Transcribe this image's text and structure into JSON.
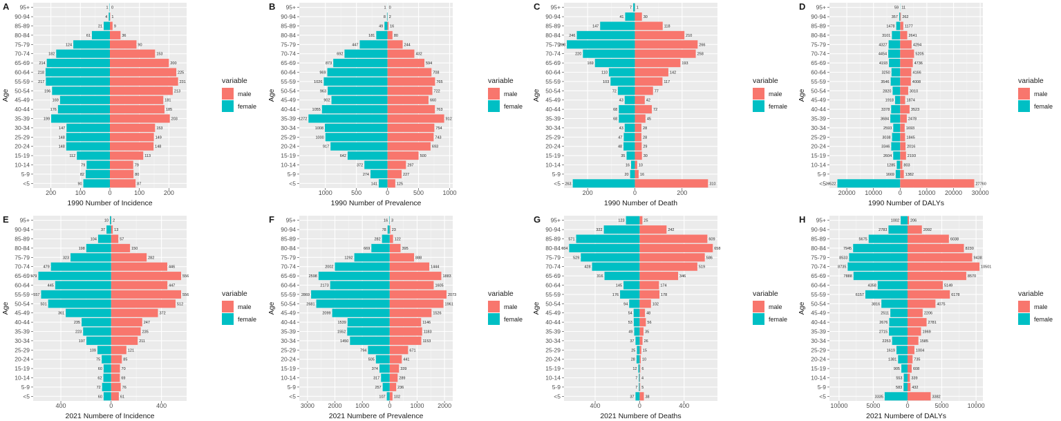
{
  "colors": {
    "male": "#F8766D",
    "female": "#00BFC4",
    "panel": "#EBEBEB",
    "grid": "#FFFFFF",
    "text": "#1A1A1A",
    "axisText": "#4D4D4D"
  },
  "age_groups": [
    "95+",
    "90-94",
    "85-89",
    "80-84",
    "75-79",
    "70-74",
    "65-69",
    "60-64",
    "55-59",
    "50-54",
    "45-49",
    "40-44",
    "35-39",
    "30-34",
    "25-29",
    "20-24",
    "15-19",
    "10-14",
    "5-9",
    "<5"
  ],
  "chart_data": [
    {
      "type": "bar",
      "orientation": "horizontal",
      "panel_label": "A",
      "xlabel": "1990 Number of Incidence",
      "ylabel": "Age",
      "legend_title": "variable",
      "legend_labels": [
        "male",
        "female"
      ],
      "xlim": [
        -260,
        260
      ],
      "ticks": [
        -200,
        -100,
        0,
        100,
        200
      ],
      "tick_labels": [
        "200",
        "100",
        "0",
        "100",
        "200"
      ],
      "male": [
        0,
        1,
        9,
        36,
        90,
        153,
        200,
        225,
        231,
        213,
        181,
        185,
        203,
        153,
        149,
        148,
        113,
        79,
        80,
        87
      ],
      "female": [
        1,
        4,
        21,
        61,
        124,
        182,
        214,
        218,
        217,
        196,
        169,
        176,
        199,
        147,
        148,
        148,
        112,
        79,
        82,
        90
      ]
    },
    {
      "type": "bar",
      "orientation": "horizontal",
      "panel_label": "B",
      "xlabel": "1990 Number of Prevalence",
      "ylabel": "Age",
      "legend_title": "variable",
      "legend_labels": [
        "male",
        "female"
      ],
      "xlim": [
        -1420,
        1050
      ],
      "ticks": [
        -1000,
        -500,
        0,
        500,
        1000
      ],
      "tick_labels": [
        "1000",
        "500",
        "0",
        "500",
        "1000"
      ],
      "male": [
        0,
        2,
        16,
        80,
        244,
        432,
        594,
        708,
        765,
        722,
        660,
        763,
        912,
        754,
        743,
        693,
        500,
        297,
        227,
        125
      ],
      "female": [
        1,
        8,
        49,
        181,
        447,
        692,
        873,
        969,
        1026,
        963,
        902,
        1055,
        1272,
        1008,
        1000,
        917,
        642,
        372,
        274,
        141
      ]
    },
    {
      "type": "bar",
      "orientation": "horizontal",
      "panel_label": "C",
      "xlabel": "1990 Number of Death",
      "ylabel": "Age",
      "legend_title": "variable",
      "legend_labels": [
        "male",
        "female"
      ],
      "xlim": [
        -300,
        350
      ],
      "ticks": [
        -200,
        0,
        200
      ],
      "tick_labels": [
        "200",
        "0",
        "200"
      ],
      "male": [
        1,
        30,
        118,
        210,
        266,
        258,
        193,
        142,
        117,
        77,
        42,
        72,
        45,
        28,
        28,
        29,
        30,
        10,
        16,
        310
      ],
      "female": [
        7,
        41,
        147,
        246,
        288,
        220,
        169,
        110,
        103,
        72,
        43,
        68,
        68,
        43,
        47,
        48,
        35,
        16,
        20,
        263
      ],
      "male_labels": [
        "1",
        "30",
        "118",
        "210",
        "266",
        "258",
        "193",
        "142",
        "117",
        "77",
        "42",
        "72",
        "45",
        "28",
        "28",
        "29",
        "30",
        "10",
        "16",
        "310"
      ]
    },
    {
      "type": "bar",
      "orientation": "horizontal",
      "panel_label": "D",
      "xlabel": "1990 Number of DALYs",
      "ylabel": "Age",
      "legend_title": "variable",
      "legend_labels": [
        "male",
        "female"
      ],
      "xlim": [
        -26500,
        31000
      ],
      "ticks": [
        -20000,
        -10000,
        0,
        10000,
        20000,
        30000
      ],
      "tick_labels": [
        "20000",
        "10000",
        "0",
        "10000",
        "20000",
        "30000"
      ],
      "male": [
        11,
        262,
        1177,
        2641,
        4294,
        5205,
        4736,
        4166,
        4008,
        3010,
        1874,
        3523,
        2478,
        1693,
        1845,
        2016,
        2193,
        803,
        1382,
        27760
      ],
      "female": [
        59,
        357,
        1478,
        3101,
        4327,
        4454,
        4193,
        3250,
        3546,
        2820,
        1918,
        3378,
        3684,
        2593,
        3038,
        3346,
        2604,
        1285,
        1669,
        23522
      ]
    },
    {
      "type": "bar",
      "orientation": "horizontal",
      "panel_label": "E",
      "xlabel": "2021 Numbere of Incidence",
      "ylabel": "Age",
      "legend_title": "variable",
      "legend_labels": [
        "male",
        "female"
      ],
      "xlim": [
        -620,
        600
      ],
      "ticks": [
        -400,
        0,
        400
      ],
      "tick_labels": [
        "400",
        "0",
        "400"
      ],
      "male": [
        2,
        13,
        57,
        150,
        282,
        446,
        556,
        447,
        556,
        512,
        372,
        247,
        235,
        211,
        121,
        85,
        70,
        69,
        76,
        61
      ],
      "female": [
        10,
        37,
        104,
        198,
        323,
        479,
        579,
        445,
        557,
        501,
        361,
        235,
        223,
        197,
        109,
        75,
        60,
        62,
        72,
        60
      ]
    },
    {
      "type": "bar",
      "orientation": "horizontal",
      "panel_label": "F",
      "xlabel": "2021 Numbere of Prevalence",
      "ylabel": "Age",
      "legend_title": "variable",
      "legend_labels": [
        "male",
        "female"
      ],
      "xlim": [
        -3300,
        2300
      ],
      "ticks": [
        -3000,
        -2000,
        -1000,
        0,
        1000,
        2000
      ],
      "tick_labels": [
        "3000",
        "2000",
        "1000",
        "0",
        "1000",
        "2000"
      ],
      "male": [
        3,
        23,
        122,
        395,
        888,
        1444,
        1883,
        1605,
        2073,
        1961,
        1526,
        1146,
        1183,
        1153,
        671,
        441,
        339,
        289,
        236,
        102
      ],
      "female": [
        16,
        78,
        282,
        669,
        1292,
        2002,
        2598,
        2173,
        2869,
        2681,
        2099,
        1539,
        1552,
        1450,
        794,
        505,
        374,
        317,
        257,
        107
      ]
    },
    {
      "type": "bar",
      "orientation": "horizontal",
      "panel_label": "G",
      "xlabel": "2021 Numbere of Deaths",
      "ylabel": "Age",
      "legend_title": "variable",
      "legend_labels": [
        "male",
        "female"
      ],
      "xlim": [
        -680,
        700
      ],
      "ticks": [
        -400,
        0,
        400
      ],
      "tick_labels": [
        "400",
        "0",
        "400"
      ],
      "male": [
        25,
        242,
        609,
        658,
        586,
        519,
        346,
        174,
        178,
        102,
        48,
        56,
        35,
        26,
        15,
        10,
        6,
        4,
        5,
        38
      ],
      "female": [
        123,
        322,
        571,
        634,
        529,
        428,
        316,
        145,
        176,
        94,
        54,
        53,
        49,
        37,
        25,
        28,
        12,
        7,
        7,
        37
      ]
    },
    {
      "type": "bar",
      "orientation": "horizontal",
      "panel_label": "H",
      "xlabel": "2021 Numbere of DALYs",
      "ylabel": "Age",
      "legend_title": "variable",
      "legend_labels": [
        "male",
        "female"
      ],
      "xlim": [
        -11400,
        11000
      ],
      "ticks": [
        -10000,
        -5000,
        0,
        5000,
        10000
      ],
      "tick_labels": [
        "10000",
        "5000",
        "0",
        "5000",
        "10000"
      ],
      "male": [
        206,
        2092,
        6038,
        8230,
        9438,
        10501,
        8570,
        5149,
        6178,
        4075,
        2206,
        2781,
        1969,
        1585,
        1004,
        735,
        608,
        339,
        432,
        3382
      ],
      "female": [
        1002,
        2783,
        5675,
        7945,
        8533,
        8735,
        7888,
        4358,
        6157,
        3816,
        2511,
        2676,
        2715,
        2253,
        1619,
        1381,
        905,
        553,
        583,
        3335
      ]
    }
  ]
}
